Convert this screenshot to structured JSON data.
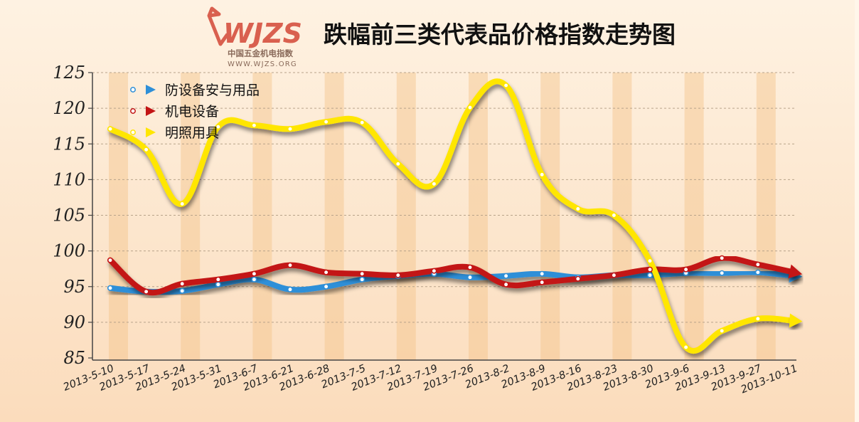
{
  "title": "跌幅前三类代表品价格指数走势图",
  "logo": {
    "mark": "WJZS",
    "subtitle": "中国五金机电指数",
    "site": "WWW.WJZS.ORG",
    "color": "#d9604f"
  },
  "chart_data": {
    "type": "line",
    "title": "跌幅前三类代表品价格指数走势图",
    "xlabel": "",
    "ylabel": "",
    "ylim": [
      85,
      125
    ],
    "yticks": [
      "85",
      "90",
      "95",
      "100",
      "105",
      "110",
      "115",
      "120",
      "125"
    ],
    "grid": true,
    "legend_position": "top-left",
    "x": [
      "2013-5-10",
      "2013-5-17",
      "2013-5-24",
      "2013-5-31",
      "2013-6-7",
      "2013-6-21",
      "2013-6-28",
      "2013-7-5",
      "2013-7-12",
      "2013-7-19",
      "2013-7-26",
      "2013-8-2",
      "2013-8-9",
      "2013-8-16",
      "2013-8-23",
      "2013-8-30",
      "2013-9-6",
      "2013-9-13",
      "2013-9-27",
      "2013-10-11"
    ],
    "series": [
      {
        "name": "防设备安与用品",
        "color": "#2e8fd8",
        "values": [
          94.8,
          94.3,
          94.4,
          95.3,
          96.0,
          94.6,
          95.0,
          96.0,
          96.5,
          96.8,
          96.3,
          96.5,
          96.8,
          96.3,
          96.6,
          96.6,
          96.9,
          96.9,
          97.0,
          96.5
        ]
      },
      {
        "name": "机电设备",
        "color": "#c31414",
        "values": [
          98.7,
          94.3,
          95.4,
          96.0,
          96.8,
          98.0,
          97.0,
          96.8,
          96.6,
          97.2,
          97.7,
          95.3,
          95.6,
          96.1,
          96.6,
          97.4,
          97.4,
          99.0,
          98.1,
          97.0
        ]
      },
      {
        "name": "明照用具",
        "color": "#ffe600",
        "values": [
          117.1,
          114.2,
          106.6,
          117.4,
          117.6,
          117.1,
          118.1,
          118.0,
          112.2,
          109.4,
          120.1,
          123.2,
          110.7,
          105.9,
          105.0,
          98.6,
          86.5,
          88.8,
          90.5,
          90.2
        ]
      }
    ]
  }
}
